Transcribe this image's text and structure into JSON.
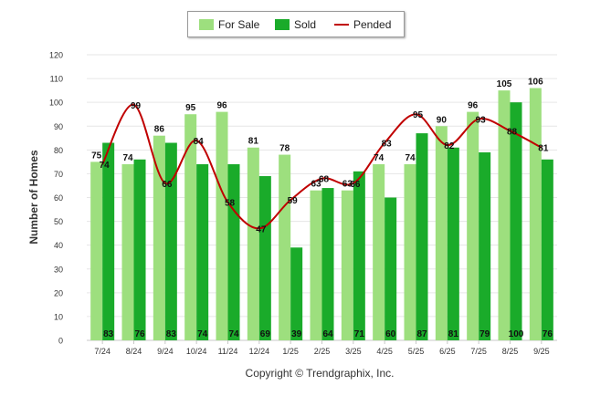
{
  "chart_data": {
    "type": "bar",
    "title": "",
    "xlabel": "",
    "ylabel": "Number of Homes",
    "ylim": [
      0,
      120
    ],
    "yticks": [
      0,
      10,
      20,
      30,
      40,
      50,
      60,
      70,
      80,
      90,
      100,
      110,
      120
    ],
    "grid": true,
    "legend_position": "top-center",
    "categories": [
      "7/24",
      "8/24",
      "9/24",
      "10/24",
      "11/24",
      "12/24",
      "1/25",
      "2/25",
      "3/25",
      "4/25",
      "5/25",
      "6/25",
      "7/25",
      "8/25",
      "9/25"
    ],
    "series": [
      {
        "name": "For Sale",
        "type": "bar",
        "color": "#9ddf7e",
        "values": [
          75,
          74,
          86,
          95,
          96,
          81,
          78,
          63,
          63,
          74,
          74,
          90,
          96,
          105,
          106
        ]
      },
      {
        "name": "Sold",
        "type": "bar",
        "color": "#1aab2a",
        "values": [
          83,
          76,
          83,
          74,
          74,
          69,
          39,
          64,
          71,
          60,
          87,
          81,
          79,
          100,
          76
        ]
      },
      {
        "name": "Pended",
        "type": "line",
        "color": "#c00000",
        "values": [
          74,
          99,
          66,
          84,
          58,
          47,
          59,
          68,
          66,
          83,
          95,
          82,
          93,
          88,
          81
        ]
      }
    ],
    "footer": "Copyright © Trendgraphix, Inc."
  }
}
